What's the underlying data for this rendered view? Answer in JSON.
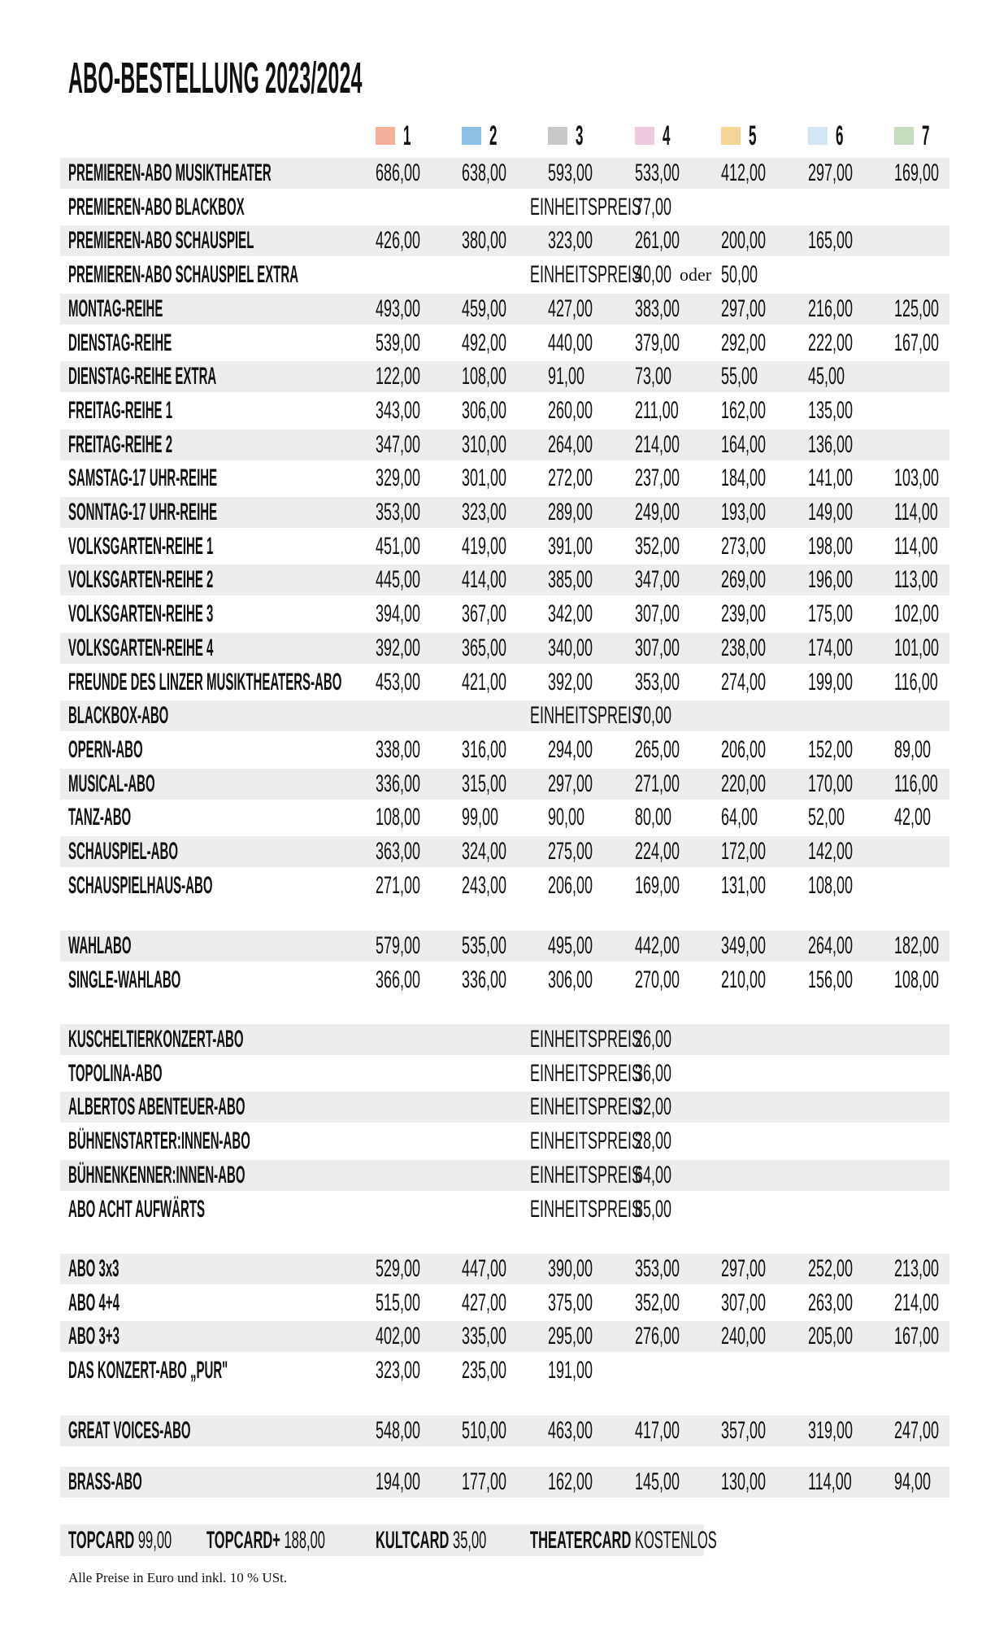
{
  "title": "ABO-BESTELLUNG 2023/2024",
  "columns": [
    {
      "label": "1",
      "color": "#f2b09a"
    },
    {
      "label": "2",
      "color": "#8dc0e6"
    },
    {
      "label": "3",
      "color": "#c8c8c8"
    },
    {
      "label": "4",
      "color": "#edc9dd"
    },
    {
      "label": "5",
      "color": "#f3d696"
    },
    {
      "label": "6",
      "color": "#d2e5f1"
    },
    {
      "label": "7",
      "color": "#c7dcbf"
    }
  ],
  "sections": [
    [
      {
        "name": "PREMIEREN-ABO MUSIKTHEATER",
        "prices": [
          "686,00",
          "638,00",
          "593,00",
          "533,00",
          "412,00",
          "297,00",
          "169,00"
        ]
      },
      {
        "name": "PREMIEREN-ABO BLACKBOX",
        "unit_label": "EINHEITSPREIS",
        "unit_price": "77,00"
      },
      {
        "name": "PREMIEREN-ABO SCHAUSPIEL",
        "prices": [
          "426,00",
          "380,00",
          "323,00",
          "261,00",
          "200,00",
          "165,00"
        ]
      },
      {
        "name": "PREMIEREN-ABO SCHAUSPIEL EXTRA",
        "unit_label": "EINHEITSPREIS",
        "unit_price": "40,00",
        "alt_joiner": "oder",
        "alt_price": "50,00"
      },
      {
        "name": "MONTAG-REIHE",
        "prices": [
          "493,00",
          "459,00",
          "427,00",
          "383,00",
          "297,00",
          "216,00",
          "125,00"
        ]
      },
      {
        "name": "DIENSTAG-REIHE",
        "prices": [
          "539,00",
          "492,00",
          "440,00",
          "379,00",
          "292,00",
          "222,00",
          "167,00"
        ]
      },
      {
        "name": "DIENSTAG-REIHE EXTRA",
        "prices": [
          "122,00",
          "108,00",
          "91,00",
          "73,00",
          "55,00",
          "45,00"
        ]
      },
      {
        "name": "FREITAG-REIHE 1",
        "prices": [
          "343,00",
          "306,00",
          "260,00",
          "211,00",
          "162,00",
          "135,00"
        ]
      },
      {
        "name": "FREITAG-REIHE 2",
        "prices": [
          "347,00",
          "310,00",
          "264,00",
          "214,00",
          "164,00",
          "136,00"
        ]
      },
      {
        "name": "SAMSTAG-17 UHR-REIHE",
        "prices": [
          "329,00",
          "301,00",
          "272,00",
          "237,00",
          "184,00",
          "141,00",
          "103,00"
        ]
      },
      {
        "name": "SONNTAG-17 UHR-REIHE",
        "prices": [
          "353,00",
          "323,00",
          "289,00",
          "249,00",
          "193,00",
          "149,00",
          "114,00"
        ]
      },
      {
        "name": "VOLKSGARTEN-REIHE 1",
        "prices": [
          "451,00",
          "419,00",
          "391,00",
          "352,00",
          "273,00",
          "198,00",
          "114,00"
        ]
      },
      {
        "name": "VOLKSGARTEN-REIHE 2",
        "prices": [
          "445,00",
          "414,00",
          "385,00",
          "347,00",
          "269,00",
          "196,00",
          "113,00"
        ]
      },
      {
        "name": "VOLKSGARTEN-REIHE 3",
        "prices": [
          "394,00",
          "367,00",
          "342,00",
          "307,00",
          "239,00",
          "175,00",
          "102,00"
        ]
      },
      {
        "name": "VOLKSGARTEN-REIHE 4",
        "prices": [
          "392,00",
          "365,00",
          "340,00",
          "307,00",
          "238,00",
          "174,00",
          "101,00"
        ]
      },
      {
        "name": "FREUNDE DES LINZER MUSIKTHEATERS-ABO",
        "prices": [
          "453,00",
          "421,00",
          "392,00",
          "353,00",
          "274,00",
          "199,00",
          "116,00"
        ]
      },
      {
        "name": "BLACKBOX-ABO",
        "unit_label": "EINHEITSPREIS",
        "unit_price": "70,00"
      },
      {
        "name": "OPERN-ABO",
        "prices": [
          "338,00",
          "316,00",
          "294,00",
          "265,00",
          "206,00",
          "152,00",
          "89,00"
        ]
      },
      {
        "name": "MUSICAL-ABO",
        "prices": [
          "336,00",
          "315,00",
          "297,00",
          "271,00",
          "220,00",
          "170,00",
          "116,00"
        ]
      },
      {
        "name": "TANZ-ABO",
        "prices": [
          "108,00",
          "99,00",
          "90,00",
          "80,00",
          "64,00",
          "52,00",
          "42,00"
        ]
      },
      {
        "name": "SCHAUSPIEL-ABO",
        "prices": [
          "363,00",
          "324,00",
          "275,00",
          "224,00",
          "172,00",
          "142,00"
        ]
      },
      {
        "name": "SCHAUSPIELHAUS-ABO",
        "prices": [
          "271,00",
          "243,00",
          "206,00",
          "169,00",
          "131,00",
          "108,00"
        ]
      }
    ],
    [
      {
        "name": "WAHLABO",
        "prices": [
          "579,00",
          "535,00",
          "495,00",
          "442,00",
          "349,00",
          "264,00",
          "182,00"
        ]
      },
      {
        "name": "SINGLE-WAHLABO",
        "prices": [
          "366,00",
          "336,00",
          "306,00",
          "270,00",
          "210,00",
          "156,00",
          "108,00"
        ]
      }
    ],
    [
      {
        "name": "KUSCHELTIERKONZERT-ABO",
        "unit_label": "EINHEITSPREIS",
        "unit_price": "26,00"
      },
      {
        "name": "TOPOLINA-ABO",
        "unit_label": "EINHEITSPREIS",
        "unit_price": "36,00"
      },
      {
        "name": "ALBERTOS ABENTEUER-ABO",
        "unit_label": "EINHEITSPREIS",
        "unit_price": "32,00"
      },
      {
        "name": "BÜHNENSTARTER:INNEN-ABO",
        "unit_label": "EINHEITSPREIS",
        "unit_price": "28,00"
      },
      {
        "name": "BÜHNENKENNER:INNEN-ABO",
        "unit_label": "EINHEITSPREIS",
        "unit_price": "64,00"
      },
      {
        "name": "ABO ACHT AUFWÄRTS",
        "unit_label": "EINHEITSPREIS",
        "unit_price": "85,00"
      }
    ],
    [
      {
        "name": "ABO 3x3",
        "prices": [
          "529,00",
          "447,00",
          "390,00",
          "353,00",
          "297,00",
          "252,00",
          "213,00"
        ]
      },
      {
        "name": "ABO 4+4",
        "prices": [
          "515,00",
          "427,00",
          "375,00",
          "352,00",
          "307,00",
          "263,00",
          "214,00"
        ]
      },
      {
        "name": "ABO 3+3",
        "prices": [
          "402,00",
          "335,00",
          "295,00",
          "276,00",
          "240,00",
          "205,00",
          "167,00"
        ]
      },
      {
        "name": "DAS KONZERT-ABO „PUR\"",
        "prices": [
          "323,00",
          "235,00",
          "191,00"
        ]
      }
    ],
    [
      {
        "name": "GREAT VOICES-ABO",
        "prices": [
          "548,00",
          "510,00",
          "463,00",
          "417,00",
          "357,00",
          "319,00",
          "247,00"
        ]
      }
    ],
    [
      {
        "name": "BRASS-ABO",
        "prices": [
          "194,00",
          "177,00",
          "162,00",
          "145,00",
          "130,00",
          "114,00",
          "94,00"
        ]
      }
    ]
  ],
  "cards": [
    {
      "name": "TOPCARD",
      "price": "99,00"
    },
    {
      "name": "TOPCARD+",
      "price": "188,00"
    },
    {
      "name": "KULTCARD",
      "price": "35,00"
    },
    {
      "name": "THEATERCARD",
      "price": "KOSTENLOS"
    }
  ],
  "footnote": "Alle Preise in Euro und inkl. 10 % USt."
}
